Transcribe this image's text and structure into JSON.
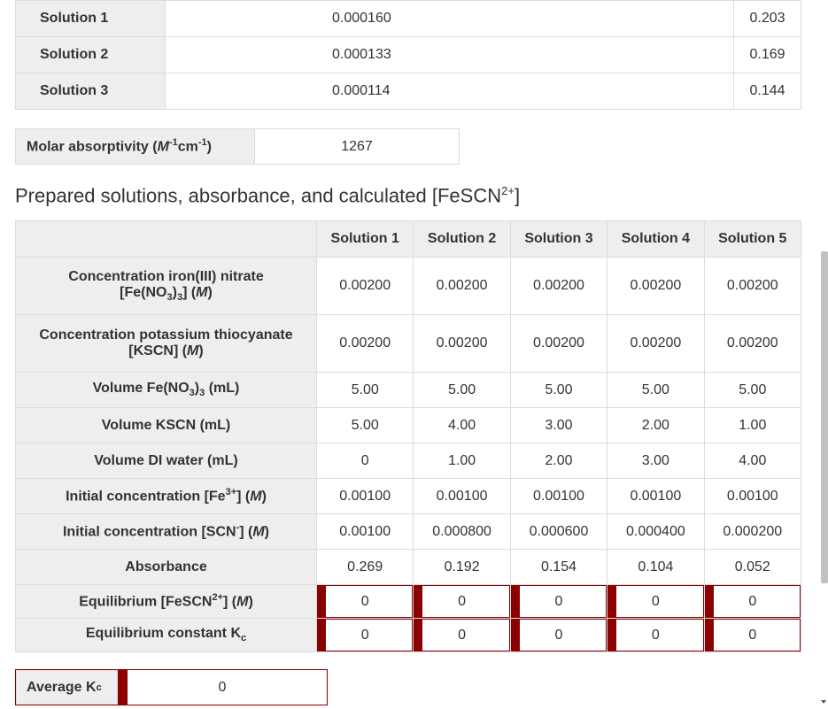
{
  "top_table": [
    {
      "label": "Solution 1",
      "v1": "0.000160",
      "v2": "0.203"
    },
    {
      "label": "Solution 2",
      "v1": "0.000133",
      "v2": "0.169"
    },
    {
      "label": "Solution 3",
      "v1": "0.000114",
      "v2": "0.144"
    }
  ],
  "molar": {
    "label": "Molar absorptivity (",
    "label_M": "M",
    "label_mid": "cm",
    "value": "1267"
  },
  "section_title": "Prepared solutions, absorbance, and calculated [FeSCN",
  "section_title_sup": "2+",
  "section_title_end": "]",
  "columns": [
    "Solution 1",
    "Solution 2",
    "Solution 3",
    "Solution 4",
    "Solution 5"
  ],
  "rows": {
    "fe_conc": {
      "values": [
        "0.00200",
        "0.00200",
        "0.00200",
        "0.00200",
        "0.00200"
      ]
    },
    "kscn_conc": {
      "values": [
        "0.00200",
        "0.00200",
        "0.00200",
        "0.00200",
        "0.00200"
      ]
    },
    "vol_fe": {
      "values": [
        "5.00",
        "5.00",
        "5.00",
        "5.00",
        "5.00"
      ]
    },
    "vol_kscn": {
      "label": "Volume KSCN (mL)",
      "values": [
        "5.00",
        "4.00",
        "3.00",
        "2.00",
        "1.00"
      ]
    },
    "vol_water": {
      "label": "Volume DI water (mL)",
      "values": [
        "0",
        "1.00",
        "2.00",
        "3.00",
        "4.00"
      ]
    },
    "init_fe": {
      "values": [
        "0.00100",
        "0.00100",
        "0.00100",
        "0.00100",
        "0.00100"
      ]
    },
    "init_scn": {
      "values": [
        "0.00100",
        "0.000800",
        "0.000600",
        "0.000400",
        "0.000200"
      ]
    },
    "absorbance": {
      "label": "Absorbance",
      "values": [
        "0.269",
        "0.192",
        "0.154",
        "0.104",
        "0.052"
      ]
    },
    "eq_fescn": {
      "values": [
        "0",
        "0",
        "0",
        "0",
        "0"
      ]
    },
    "eq_kc": {
      "values": [
        "0",
        "0",
        "0",
        "0",
        "0"
      ]
    }
  },
  "average": {
    "label": "Average K",
    "label_sub": "c",
    "value": "0"
  },
  "colors": {
    "accent": "#8b0000",
    "header_bg": "#eeeeee",
    "border": "#dcdcdc"
  }
}
